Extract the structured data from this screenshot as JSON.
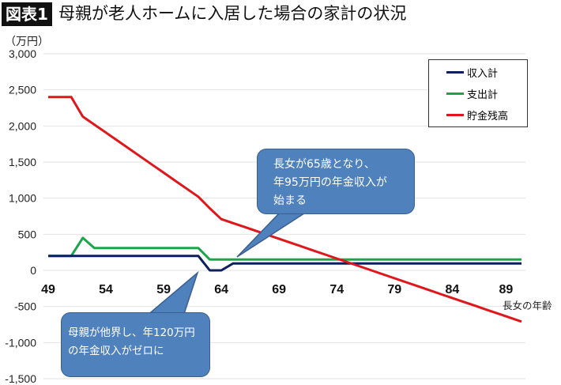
{
  "header": {
    "badge": "図表1",
    "title": "母親が老人ホームに入居した場合の家計の状況"
  },
  "chart_data": {
    "type": "line",
    "title": "母親が老人ホームに入居した場合の家計の状況",
    "ylabel": "（万円）",
    "xlabel": "長女の年齢",
    "ylim": [
      -1500,
      3000
    ],
    "xlim": [
      49,
      90
    ],
    "yticks": [
      3000,
      2500,
      2000,
      1500,
      1000,
      500,
      0,
      -500,
      -1000,
      -1500
    ],
    "ytick_labels": [
      "3,000",
      "2,500",
      "2,000",
      "1,500",
      "1,000",
      "500",
      "0",
      "-500",
      "-1,000",
      "-1,500"
    ],
    "xticks": [
      49,
      54,
      59,
      64,
      69,
      74,
      79,
      84,
      89
    ],
    "grid": true,
    "legend_position": "top-right",
    "x": [
      49,
      50,
      51,
      52,
      53,
      54,
      55,
      56,
      57,
      58,
      59,
      60,
      61,
      62,
      63,
      64,
      65,
      66,
      67,
      68,
      69,
      70,
      71,
      72,
      73,
      74,
      75,
      76,
      77,
      78,
      79,
      80,
      81,
      82,
      83,
      84,
      85,
      86,
      87,
      88,
      89,
      90
    ],
    "series": [
      {
        "name": "収入計",
        "color": "#0d1f5c",
        "values": [
          200,
          200,
          200,
          200,
          200,
          200,
          200,
          200,
          200,
          200,
          200,
          200,
          200,
          200,
          0,
          0,
          95,
          95,
          95,
          95,
          95,
          95,
          95,
          95,
          95,
          95,
          95,
          95,
          95,
          95,
          95,
          95,
          95,
          95,
          95,
          95,
          95,
          95,
          95,
          95,
          95,
          95
        ]
      },
      {
        "name": "支出計",
        "color": "#1aa64a",
        "values": [
          200,
          200,
          200,
          450,
          310,
          310,
          310,
          310,
          310,
          310,
          310,
          310,
          310,
          310,
          150,
          150,
          150,
          150,
          150,
          150,
          150,
          150,
          150,
          150,
          150,
          150,
          150,
          150,
          150,
          150,
          150,
          150,
          150,
          150,
          150,
          150,
          150,
          150,
          150,
          150,
          150,
          150
        ]
      },
      {
        "name": "貯金残高",
        "color": "#e0161b",
        "values": [
          2400,
          2400,
          2400,
          2130,
          2019,
          1908,
          1797,
          1686,
          1575,
          1464,
          1353,
          1242,
          1131,
          1020,
          860,
          710,
          655,
          601,
          546,
          492,
          437,
          382,
          328,
          273,
          219,
          164,
          109,
          55,
          0,
          -55,
          -109,
          -164,
          -218,
          -273,
          -328,
          -382,
          -437,
          -491,
          -546,
          -600,
          -655,
          -710
        ]
      }
    ],
    "annotations": [
      {
        "text_lines": [
          "長女が65歳となり、",
          "年95万円の年金収入が",
          "始まる"
        ],
        "points_to_age": 65
      },
      {
        "text_lines": [
          "母親が他界し、年120万円",
          "の年金収入がゼロに"
        ],
        "points_to_age": 62
      }
    ]
  }
}
